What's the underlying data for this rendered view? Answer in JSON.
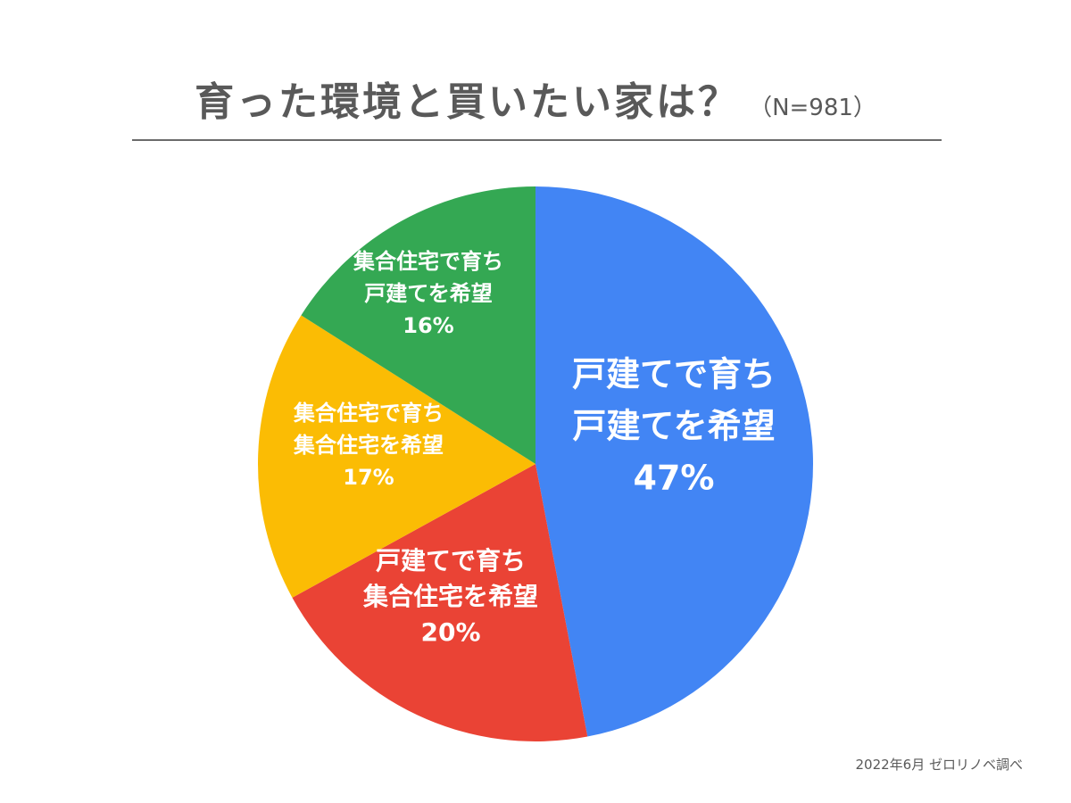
{
  "title": {
    "main": "育った環境と買いたい家は？",
    "n": "（N=981）"
  },
  "source": "2022年6月 ゼロリノベ調べ",
  "chart_data": {
    "type": "pie",
    "title": "育った環境と買いたい家は？",
    "n": 981,
    "start": "12 o'clock, clockwise",
    "slices": [
      {
        "label_lines": [
          "戸建てで育ち",
          "戸建てを希望"
        ],
        "value": 47,
        "value_label": "47%",
        "color": "#4285f4"
      },
      {
        "label_lines": [
          "戸建てで育ち",
          "集合住宅を希望"
        ],
        "value": 20,
        "value_label": "20%",
        "color": "#ea4335"
      },
      {
        "label_lines": [
          "集合住宅で育ち",
          "集合住宅を希望"
        ],
        "value": 17,
        "value_label": "17%",
        "color": "#fbbc04"
      },
      {
        "label_lines": [
          "集合住宅で育ち",
          "戸建てを希望"
        ],
        "value": 16,
        "value_label": "16%",
        "color": "#34a853"
      }
    ]
  }
}
